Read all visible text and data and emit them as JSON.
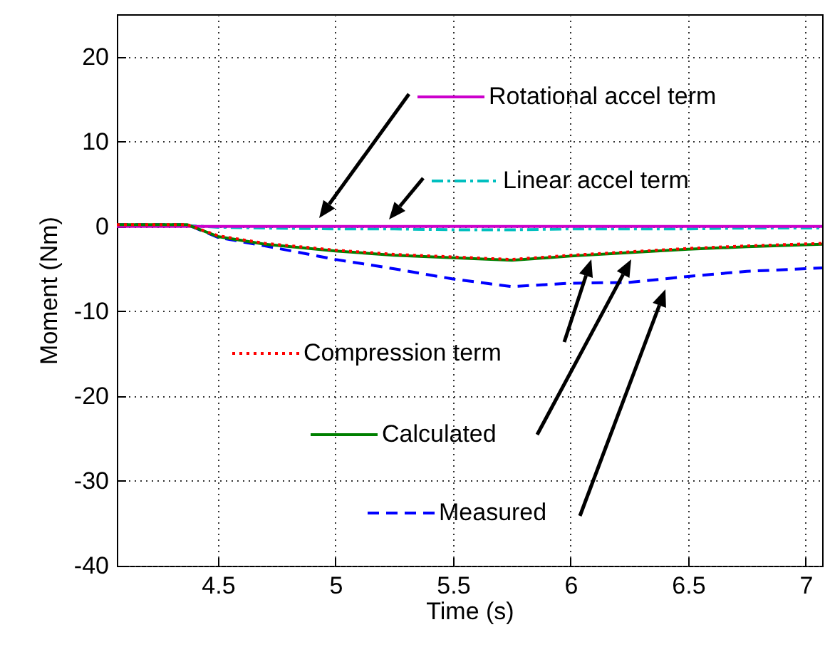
{
  "chart_data": {
    "type": "line",
    "xlabel": "Time (s)",
    "ylabel": "Moment (Nm)",
    "xlim": [
      4.07,
      7.07
    ],
    "ylim": [
      -40,
      25
    ],
    "xticks": [
      4.5,
      5,
      5.5,
      6,
      6.5,
      7
    ],
    "yticks": [
      -40,
      -30,
      -20,
      -10,
      0,
      10,
      20
    ],
    "grid": true,
    "legend": "right",
    "series": [
      {
        "name": "Measured",
        "color": "#0000ff",
        "line_style": "dashed",
        "x": [
          4.07,
          4.37,
          4.5,
          4.7,
          5,
          5.25,
          5.5,
          5.75,
          6,
          6.25,
          6.5,
          6.75,
          7.07
        ],
        "values": [
          0.2,
          0.2,
          -1.3,
          -2.3,
          -3.9,
          -5.0,
          -6.2,
          -7.1,
          -6.7,
          -6.6,
          -5.9,
          -5.3,
          -4.9
        ]
      },
      {
        "name": "Linear accel term",
        "color": "#00bfbf",
        "line_style": "dashdot",
        "x": [
          4.07,
          4.37,
          4.5,
          4.7,
          5,
          5.25,
          5.5,
          5.75,
          6,
          6.25,
          6.5,
          6.75,
          7.07
        ],
        "values": [
          0.1,
          0.1,
          -0.1,
          -0.2,
          -0.3,
          -0.3,
          -0.4,
          -0.4,
          -0.3,
          -0.3,
          -0.3,
          -0.2,
          -0.2
        ]
      },
      {
        "name": "Rotational accel term",
        "color": "#cc00cc",
        "line_style": "solid",
        "x": [
          4.07,
          7.07
        ],
        "values": [
          0,
          0
        ]
      },
      {
        "name": "Calculated",
        "color": "#008000",
        "line_style": "solid",
        "x": [
          4.07,
          4.2,
          4.37,
          4.5,
          4.7,
          5,
          5.25,
          5.5,
          5.75,
          6,
          6.25,
          6.5,
          6.75,
          7.07
        ],
        "values": [
          0.2,
          0.2,
          0.2,
          -1.2,
          -2.1,
          -2.9,
          -3.4,
          -3.7,
          -4.0,
          -3.5,
          -3.1,
          -2.7,
          -2.4,
          -2.1
        ]
      },
      {
        "name": "Compression term",
        "color": "#ff0000",
        "line_style": "dotted",
        "x": [
          4.07,
          4.2,
          4.37,
          4.5,
          4.7,
          5,
          5.25,
          5.5,
          5.75,
          6,
          6.25,
          6.5,
          6.75,
          7.07
        ],
        "values": [
          0.2,
          0.2,
          0.2,
          -1.1,
          -2.0,
          -2.8,
          -3.3,
          -3.6,
          -3.9,
          -3.4,
          -3.0,
          -2.6,
          -2.3,
          -2.0
        ]
      }
    ]
  }
}
